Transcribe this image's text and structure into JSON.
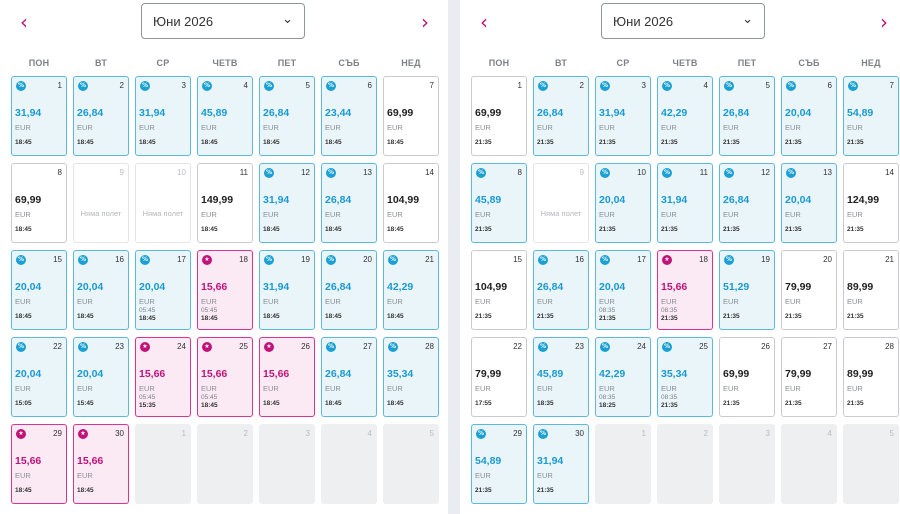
{
  "weekdays": [
    "ПОН",
    "ВТ",
    "СР",
    "ЧЕТВ",
    "ПЕТ",
    "СЪБ",
    "НЕД"
  ],
  "icons": {
    "prev": "chevron-left-icon",
    "next": "chevron-right-icon",
    "dropdown": "chevron-down-icon",
    "discount": "percent-icon",
    "star": "star-icon"
  },
  "colors": {
    "accent_blue": "#1a9ad0",
    "accent_pink": "#c0137a"
  },
  "calendars": [
    {
      "month_label": "Юни 2026",
      "days": [
        {
          "day": "1",
          "type": "discount",
          "price": "31,94",
          "currency": "EUR",
          "times": [
            "18:45"
          ]
        },
        {
          "day": "2",
          "type": "discount",
          "price": "26,84",
          "currency": "EUR",
          "times": [
            "18:45"
          ]
        },
        {
          "day": "3",
          "type": "discount",
          "price": "31,94",
          "currency": "EUR",
          "times": [
            "18:45"
          ]
        },
        {
          "day": "4",
          "type": "discount",
          "price": "45,89",
          "currency": "EUR",
          "times": [
            "18:45"
          ]
        },
        {
          "day": "5",
          "type": "discount",
          "price": "26,84",
          "currency": "EUR",
          "times": [
            "18:45"
          ]
        },
        {
          "day": "6",
          "type": "discount",
          "price": "23,44",
          "currency": "EUR",
          "times": [
            "18:45"
          ]
        },
        {
          "day": "7",
          "type": "plain",
          "price": "69,99",
          "currency": "EUR",
          "times": [
            "18:45"
          ]
        },
        {
          "day": "8",
          "type": "plain",
          "price": "69,99",
          "currency": "EUR",
          "times": [
            "18:45"
          ]
        },
        {
          "day": "9",
          "type": "noflight",
          "label": "Няма полет"
        },
        {
          "day": "10",
          "type": "noflight",
          "label": "Няма полет"
        },
        {
          "day": "11",
          "type": "plain",
          "price": "149,99",
          "currency": "EUR",
          "times": [
            "18:45"
          ]
        },
        {
          "day": "12",
          "type": "discount",
          "price": "31,94",
          "currency": "EUR",
          "times": [
            "18:45"
          ]
        },
        {
          "day": "13",
          "type": "discount",
          "price": "26,84",
          "currency": "EUR",
          "times": [
            "18:45"
          ]
        },
        {
          "day": "14",
          "type": "plain",
          "price": "104,99",
          "currency": "EUR",
          "times": [
            "18:45"
          ]
        },
        {
          "day": "15",
          "type": "discount",
          "price": "20,04",
          "currency": "EUR",
          "times": [
            "18:45"
          ]
        },
        {
          "day": "16",
          "type": "discount",
          "price": "20,04",
          "currency": "EUR",
          "times": [
            "18:45"
          ]
        },
        {
          "day": "17",
          "type": "discount",
          "price": "20,04",
          "currency": "EUR",
          "times": [
            "05:45",
            "18:45"
          ]
        },
        {
          "day": "18",
          "type": "star",
          "price": "15,66",
          "currency": "EUR",
          "times": [
            "05:45",
            "18:45"
          ]
        },
        {
          "day": "19",
          "type": "discount",
          "price": "31,94",
          "currency": "EUR",
          "times": [
            "18:45"
          ]
        },
        {
          "day": "20",
          "type": "discount",
          "price": "26,84",
          "currency": "EUR",
          "times": [
            "18:45"
          ]
        },
        {
          "day": "21",
          "type": "discount",
          "price": "42,29",
          "currency": "EUR",
          "times": [
            "18:45"
          ]
        },
        {
          "day": "22",
          "type": "discount",
          "price": "20,04",
          "currency": "EUR",
          "times": [
            "15:05"
          ]
        },
        {
          "day": "23",
          "type": "discount",
          "price": "20,04",
          "currency": "EUR",
          "times": [
            "15:45"
          ]
        },
        {
          "day": "24",
          "type": "star",
          "price": "15,66",
          "currency": "EUR",
          "times": [
            "05:45",
            "15:35"
          ]
        },
        {
          "day": "25",
          "type": "star",
          "price": "15,66",
          "currency": "EUR",
          "times": [
            "05:45",
            "18:45"
          ]
        },
        {
          "day": "26",
          "type": "star",
          "price": "15,66",
          "currency": "EUR",
          "times": [
            "18:45"
          ]
        },
        {
          "day": "27",
          "type": "discount",
          "price": "26,84",
          "currency": "EUR",
          "times": [
            "18:45"
          ]
        },
        {
          "day": "28",
          "type": "discount",
          "price": "35,34",
          "currency": "EUR",
          "times": [
            "18:45"
          ]
        },
        {
          "day": "29",
          "type": "star",
          "price": "15,66",
          "currency": "EUR",
          "times": [
            "18:45"
          ]
        },
        {
          "day": "30",
          "type": "star",
          "price": "15,66",
          "currency": "EUR",
          "times": [
            "18:45"
          ]
        },
        {
          "day": "1",
          "type": "empty"
        },
        {
          "day": "2",
          "type": "empty"
        },
        {
          "day": "3",
          "type": "empty"
        },
        {
          "day": "4",
          "type": "empty"
        },
        {
          "day": "5",
          "type": "empty"
        }
      ]
    },
    {
      "month_label": "Юни 2026",
      "days": [
        {
          "day": "1",
          "type": "plain",
          "price": "69,99",
          "currency": "EUR",
          "times": [
            "21:35"
          ]
        },
        {
          "day": "2",
          "type": "discount",
          "price": "26,84",
          "currency": "EUR",
          "times": [
            "21:35"
          ]
        },
        {
          "day": "3",
          "type": "discount",
          "price": "31,94",
          "currency": "EUR",
          "times": [
            "21:35"
          ]
        },
        {
          "day": "4",
          "type": "discount",
          "price": "42,29",
          "currency": "EUR",
          "times": [
            "21:35"
          ]
        },
        {
          "day": "5",
          "type": "discount",
          "price": "26,84",
          "currency": "EUR",
          "times": [
            "21:35"
          ]
        },
        {
          "day": "6",
          "type": "discount",
          "price": "20,04",
          "currency": "EUR",
          "times": [
            "21:35"
          ]
        },
        {
          "day": "7",
          "type": "discount",
          "price": "54,89",
          "currency": "EUR",
          "times": [
            "21:35"
          ]
        },
        {
          "day": "8",
          "type": "discount",
          "price": "45,89",
          "currency": "EUR",
          "times": [
            "21:35"
          ]
        },
        {
          "day": "9",
          "type": "noflight",
          "label": "Няма полет"
        },
        {
          "day": "10",
          "type": "discount",
          "price": "20,04",
          "currency": "EUR",
          "times": [
            "21:35"
          ]
        },
        {
          "day": "11",
          "type": "discount",
          "price": "31,94",
          "currency": "EUR",
          "times": [
            "21:35"
          ]
        },
        {
          "day": "12",
          "type": "discount",
          "price": "26,84",
          "currency": "EUR",
          "times": [
            "21:35"
          ]
        },
        {
          "day": "13",
          "type": "discount",
          "price": "20,04",
          "currency": "EUR",
          "times": [
            "21:35"
          ]
        },
        {
          "day": "14",
          "type": "plain",
          "price": "124,99",
          "currency": "EUR",
          "times": [
            "21:35"
          ]
        },
        {
          "day": "15",
          "type": "plain",
          "price": "104,99",
          "currency": "EUR",
          "times": [
            "21:35"
          ]
        },
        {
          "day": "16",
          "type": "discount",
          "price": "26,84",
          "currency": "EUR",
          "times": [
            "21:35"
          ]
        },
        {
          "day": "17",
          "type": "discount",
          "price": "20,04",
          "currency": "EUR",
          "times": [
            "08:35",
            "21:35"
          ]
        },
        {
          "day": "18",
          "type": "star",
          "price": "15,66",
          "currency": "EUR",
          "times": [
            "08:35",
            "21:35"
          ]
        },
        {
          "day": "19",
          "type": "discount",
          "price": "51,29",
          "currency": "EUR",
          "times": [
            "21:35"
          ]
        },
        {
          "day": "20",
          "type": "plain",
          "price": "79,99",
          "currency": "EUR",
          "times": [
            "21:35"
          ]
        },
        {
          "day": "21",
          "type": "plain",
          "price": "89,99",
          "currency": "EUR",
          "times": [
            "21:35"
          ]
        },
        {
          "day": "22",
          "type": "plain",
          "price": "79,99",
          "currency": "EUR",
          "times": [
            "17:55"
          ]
        },
        {
          "day": "23",
          "type": "discount",
          "price": "45,89",
          "currency": "EUR",
          "times": [
            "18:35"
          ]
        },
        {
          "day": "24",
          "type": "discount",
          "price": "42,29",
          "currency": "EUR",
          "times": [
            "08:35",
            "18:25"
          ]
        },
        {
          "day": "25",
          "type": "discount",
          "price": "35,34",
          "currency": "EUR",
          "times": [
            "08:35",
            "21:35"
          ]
        },
        {
          "day": "26",
          "type": "plain",
          "price": "69,99",
          "currency": "EUR",
          "times": [
            "21:35"
          ]
        },
        {
          "day": "27",
          "type": "plain",
          "price": "79,99",
          "currency": "EUR",
          "times": [
            "21:35"
          ]
        },
        {
          "day": "28",
          "type": "plain",
          "price": "89,99",
          "currency": "EUR",
          "times": [
            "21:35"
          ]
        },
        {
          "day": "29",
          "type": "discount",
          "price": "54,89",
          "currency": "EUR",
          "times": [
            "21:35"
          ]
        },
        {
          "day": "30",
          "type": "discount",
          "price": "31,94",
          "currency": "EUR",
          "times": [
            "21:35"
          ]
        },
        {
          "day": "1",
          "type": "empty"
        },
        {
          "day": "2",
          "type": "empty"
        },
        {
          "day": "3",
          "type": "empty"
        },
        {
          "day": "4",
          "type": "empty"
        },
        {
          "day": "5",
          "type": "empty"
        }
      ]
    }
  ]
}
